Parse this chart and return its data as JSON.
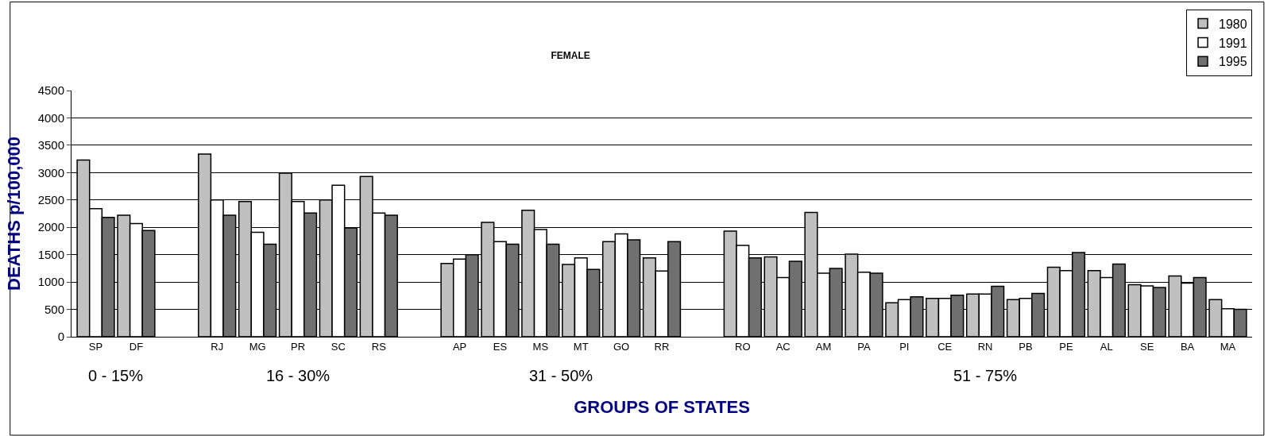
{
  "chart_data": {
    "type": "bar",
    "title": "FEMALE",
    "xlabel": "GROUPS OF STATES",
    "ylabel": "DEATHS p/100,000",
    "categories": [
      "SP",
      "DF",
      null,
      "RJ",
      "MG",
      "PR",
      "SC",
      "RS",
      null,
      "AP",
      "ES",
      "MS",
      "MT",
      "GO",
      "RR",
      null,
      "RO",
      "AC",
      "AM",
      "PA",
      "PI",
      "CE",
      "RN",
      "PB",
      "PE",
      "AL",
      "SE",
      "BA",
      "MA"
    ],
    "series": [
      {
        "name": "1980",
        "color": "#c0c0c0",
        "values": [
          3230,
          2220,
          null,
          3340,
          2470,
          2990,
          2500,
          2930,
          null,
          1340,
          2090,
          2310,
          1320,
          1740,
          1440,
          null,
          1930,
          1460,
          2270,
          1510,
          620,
          700,
          780,
          680,
          1270,
          1210,
          950,
          1110,
          680
        ]
      },
      {
        "name": "1991",
        "color": "#ffffff",
        "values": [
          2340,
          2070,
          null,
          2500,
          1910,
          2470,
          2770,
          2260,
          null,
          1420,
          1740,
          1960,
          1440,
          1880,
          1200,
          null,
          1670,
          1080,
          1160,
          1180,
          680,
          700,
          780,
          700,
          1210,
          1080,
          930,
          980,
          510
        ]
      },
      {
        "name": "1995",
        "color": "#707070",
        "values": [
          2180,
          1940,
          null,
          2220,
          1690,
          2260,
          1990,
          2220,
          null,
          1500,
          1690,
          1690,
          1230,
          1770,
          1740,
          null,
          1440,
          1380,
          1250,
          1160,
          730,
          760,
          920,
          790,
          1540,
          1330,
          900,
          1080,
          500
        ]
      }
    ],
    "annotations": [
      "0 - 15%",
      "16 - 30%",
      "31 - 50%",
      "51 - 75%"
    ],
    "ylim": [
      0,
      4500
    ],
    "yticks": [
      0,
      500,
      1000,
      1500,
      2000,
      2500,
      3000,
      3500,
      4000,
      4500
    ],
    "grid": "y",
    "legend": "top right"
  }
}
